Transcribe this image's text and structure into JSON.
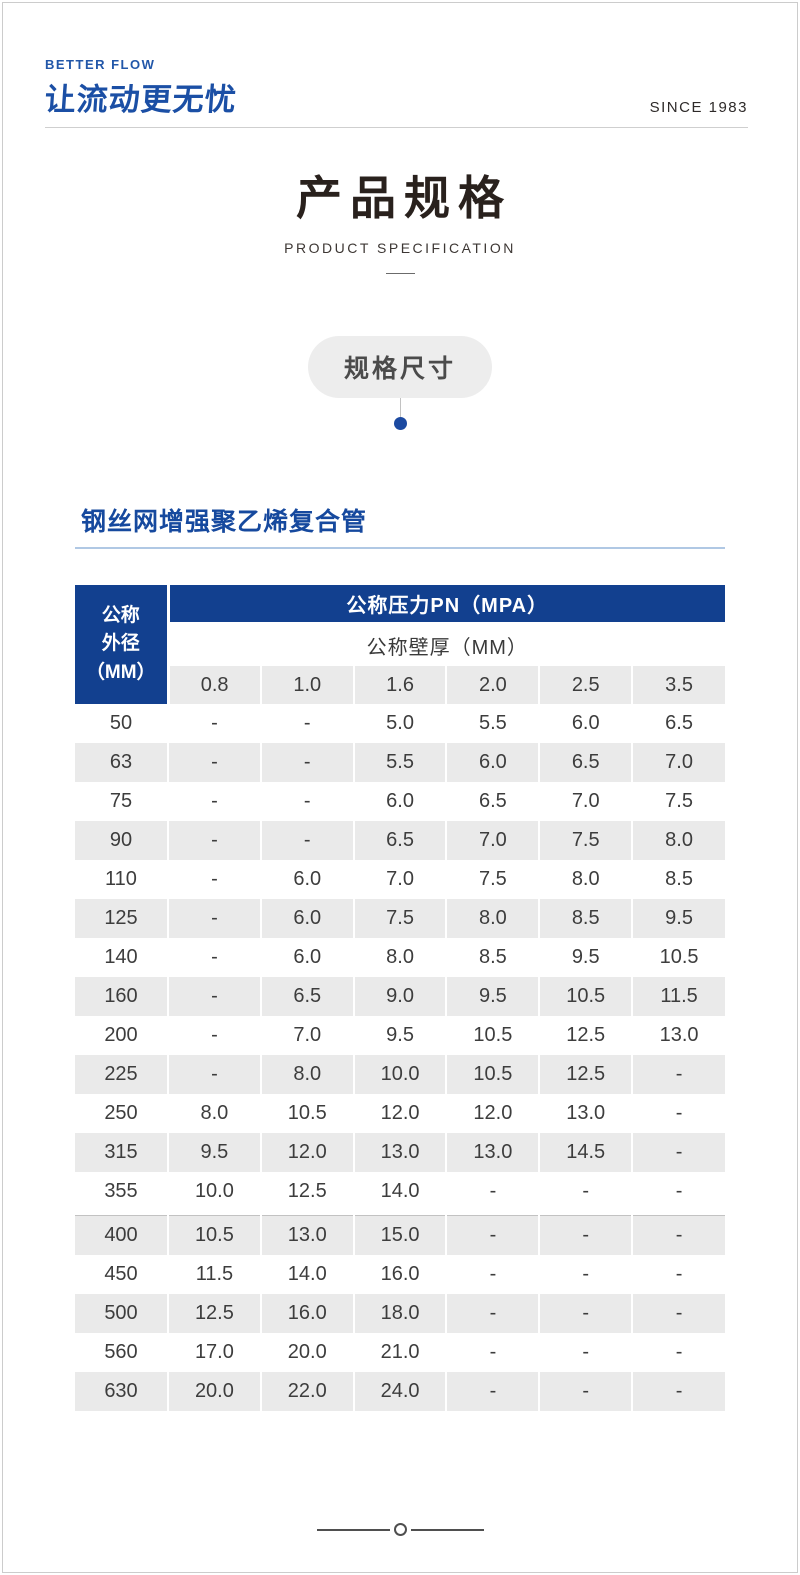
{
  "header": {
    "brand_tagline": "BETTER FLOW",
    "brand_logo": "让流动更无忧",
    "since": "SINCE 1983"
  },
  "title": {
    "zh": "产品规格",
    "en": "PRODUCT SPECIFICATION"
  },
  "badge": {
    "label": "规格尺寸"
  },
  "section": {
    "heading": "钢丝网增强聚乙烯复合管"
  },
  "table": {
    "row_header": "公称\n外径\n（MM）",
    "pressure_header": "公称压力PN（MPA）",
    "wall_header": "公称壁厚（MM）",
    "pressure_columns": [
      "0.8",
      "1.0",
      "1.6",
      "2.0",
      "2.5",
      "3.5"
    ],
    "rows": [
      {
        "od": "50",
        "values": [
          "-",
          "-",
          "5.0",
          "5.5",
          "6.0",
          "6.5"
        ]
      },
      {
        "od": "63",
        "values": [
          "-",
          "-",
          "5.5",
          "6.0",
          "6.5",
          "7.0"
        ]
      },
      {
        "od": "75",
        "values": [
          "-",
          "-",
          "6.0",
          "6.5",
          "7.0",
          "7.5"
        ]
      },
      {
        "od": "90",
        "values": [
          "-",
          "-",
          "6.5",
          "7.0",
          "7.5",
          "8.0"
        ]
      },
      {
        "od": "110",
        "values": [
          "-",
          "6.0",
          "7.0",
          "7.5",
          "8.0",
          "8.5"
        ]
      },
      {
        "od": "125",
        "values": [
          "-",
          "6.0",
          "7.5",
          "8.0",
          "8.5",
          "9.5"
        ]
      },
      {
        "od": "140",
        "values": [
          "-",
          "6.0",
          "8.0",
          "8.5",
          "9.5",
          "10.5"
        ]
      },
      {
        "od": "160",
        "values": [
          "-",
          "6.5",
          "9.0",
          "9.5",
          "10.5",
          "11.5"
        ]
      },
      {
        "od": "200",
        "values": [
          "-",
          "7.0",
          "9.5",
          "10.5",
          "12.5",
          "13.0"
        ]
      },
      {
        "od": "225",
        "values": [
          "-",
          "8.0",
          "10.0",
          "10.5",
          "12.5",
          "-"
        ]
      },
      {
        "od": "250",
        "values": [
          "8.0",
          "10.5",
          "12.0",
          "12.0",
          "13.0",
          "-"
        ]
      },
      {
        "od": "315",
        "values": [
          "9.5",
          "12.0",
          "13.0",
          "13.0",
          "14.5",
          "-"
        ]
      },
      {
        "od": "355",
        "values": [
          "10.0",
          "12.5",
          "14.0",
          "-",
          "-",
          "-"
        ]
      },
      {
        "od": "400",
        "values": [
          "10.5",
          "13.0",
          "15.0",
          "-",
          "-",
          "-"
        ]
      },
      {
        "od": "450",
        "values": [
          "11.5",
          "14.0",
          "16.0",
          "-",
          "-",
          "-"
        ]
      },
      {
        "od": "500",
        "values": [
          "12.5",
          "16.0",
          "18.0",
          "-",
          "-",
          "-"
        ]
      },
      {
        "od": "560",
        "values": [
          "17.0",
          "20.0",
          "21.0",
          "-",
          "-",
          "-"
        ]
      },
      {
        "od": "630",
        "values": [
          "20.0",
          "22.0",
          "24.0",
          "-",
          "-",
          "-"
        ]
      }
    ]
  },
  "colors": {
    "brand_blue": "#1b4fa5",
    "table_header_blue": "#12408f",
    "heading_blue": "#16499e",
    "heading_rule_blue": "#b0c8e4",
    "dot_blue": "#1c4aa1",
    "row_alt_gray": "#eaeaea",
    "badge_gray": "#ededed"
  }
}
